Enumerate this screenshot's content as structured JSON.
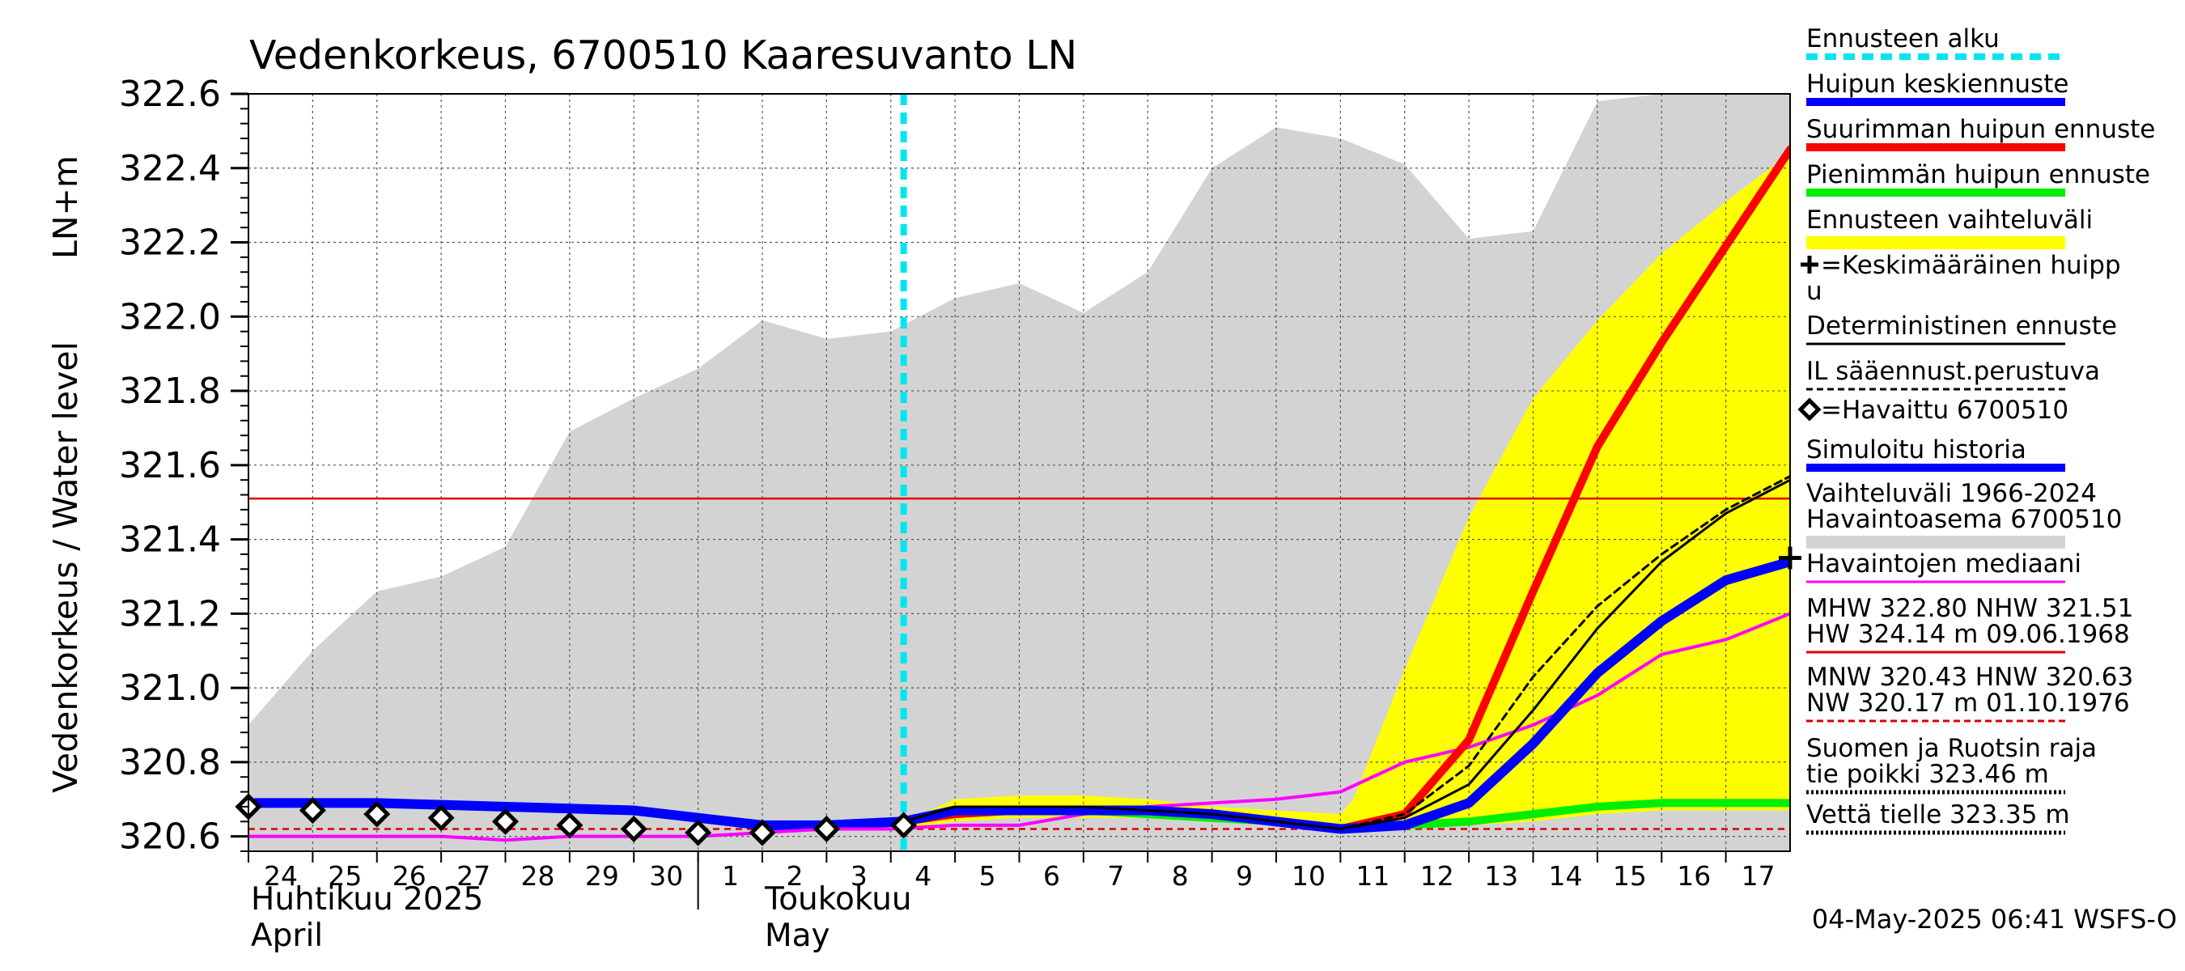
{
  "chart_data": {
    "type": "line",
    "title": "Vedenkorkeus, 6700510 Kaaresuvanto LN",
    "ylabel_left": "Vedenkorkeus / Water level",
    "ylabel_right": "LN+m",
    "ylim": [
      320.56,
      322.6
    ],
    "y_ticks": [
      "322.6",
      "322.4",
      "322.2",
      "322.0",
      "321.8",
      "321.6",
      "321.4",
      "321.2",
      "321.0",
      "320.8",
      "320.6"
    ],
    "y_tick_values": [
      322.6,
      322.4,
      322.2,
      322.0,
      321.8,
      321.6,
      321.4,
      321.2,
      321.0,
      320.8,
      320.6
    ],
    "x_ticks": [
      "24",
      "25",
      "26",
      "27",
      "28",
      "29",
      "30",
      "1",
      "2",
      "3",
      "4",
      "5",
      "6",
      "7",
      "8",
      "9",
      "10",
      "11",
      "12",
      "13",
      "14",
      "15",
      "16",
      "17"
    ],
    "x_tick_positions": [
      0,
      1,
      2,
      3,
      4,
      5,
      6,
      7,
      8,
      9,
      10,
      11,
      12,
      13,
      14,
      15,
      16,
      17,
      18,
      19,
      20,
      21,
      22,
      23
    ],
    "x_range": [
      0,
      24
    ],
    "grid": true,
    "month_labels": [
      {
        "line1": "Huhtikuu  2025",
        "line2": "April",
        "x": 0
      },
      {
        "line1": "Toukokuu",
        "line2": "May",
        "x": 8
      }
    ],
    "month_divider_x": 7,
    "forecast_start_x": 10.2,
    "reference_lines": {
      "nhw": 321.51,
      "nnw_dashed": 320.62
    },
    "history_band": {
      "x": [
        0,
        1,
        2,
        3,
        4,
        5,
        6,
        7,
        8,
        9,
        10,
        11,
        12,
        13,
        14,
        15,
        16,
        17,
        18,
        19,
        20,
        21,
        22,
        23,
        24
      ],
      "upper": [
        320.9,
        321.1,
        321.26,
        321.3,
        321.38,
        321.69,
        321.78,
        321.86,
        321.99,
        321.94,
        321.96,
        322.05,
        322.09,
        322.01,
        322.12,
        322.4,
        322.51,
        322.48,
        322.41,
        322.21,
        322.23,
        322.58,
        322.6,
        322.6,
        322.6
      ],
      "lower": [
        320.56,
        320.56,
        320.56,
        320.56,
        320.56,
        320.56,
        320.56,
        320.56,
        320.56,
        320.56,
        320.56,
        320.56,
        320.56,
        320.56,
        320.56,
        320.56,
        320.56,
        320.56,
        320.56,
        320.56,
        320.56,
        320.56,
        320.56,
        320.56,
        320.56
      ]
    },
    "forecast_band": {
      "x": [
        10.2,
        11,
        12,
        13,
        14,
        15,
        16,
        17,
        17.2,
        18,
        19,
        20,
        21,
        22,
        23,
        24
      ],
      "upper": [
        320.64,
        320.7,
        320.71,
        320.71,
        320.7,
        320.68,
        320.67,
        320.66,
        320.7,
        321.05,
        321.46,
        321.78,
        321.99,
        322.17,
        322.31,
        322.44
      ],
      "lower": [
        320.62,
        320.64,
        320.65,
        320.65,
        320.65,
        320.64,
        320.63,
        320.62,
        320.62,
        320.62,
        320.63,
        320.64,
        320.66,
        320.67,
        320.67,
        320.67
      ]
    },
    "series": [
      {
        "name": "Simuloitu historia",
        "color": "#0000ff",
        "x": [
          0,
          1,
          2,
          3,
          4,
          5,
          6,
          7,
          8,
          9,
          10.2
        ],
        "y": [
          320.69,
          320.69,
          320.69,
          320.685,
          320.68,
          320.675,
          320.67,
          320.65,
          320.63,
          320.63,
          320.64
        ]
      },
      {
        "name": "Havaintojen mediaani",
        "color": "#ff00ff",
        "x": [
          0,
          1,
          2,
          3,
          4,
          5,
          6,
          7,
          8,
          9,
          10,
          11,
          12,
          13,
          14,
          15,
          16,
          17,
          18,
          19,
          20,
          21,
          22,
          23,
          24
        ],
        "y": [
          320.6,
          320.6,
          320.6,
          320.6,
          320.59,
          320.6,
          320.6,
          320.6,
          320.61,
          320.62,
          320.62,
          320.63,
          320.63,
          320.66,
          320.68,
          320.69,
          320.7,
          320.72,
          320.8,
          320.84,
          320.9,
          320.98,
          321.09,
          321.13,
          321.2
        ]
      },
      {
        "name": "Suurimman huipun ennuste",
        "color": "#ff0000",
        "x": [
          10.2,
          11,
          12,
          13,
          14,
          15,
          16,
          17,
          18,
          19,
          20,
          21,
          22,
          23,
          24
        ],
        "y": [
          320.64,
          320.66,
          320.67,
          320.67,
          320.67,
          320.66,
          320.64,
          320.62,
          320.66,
          320.86,
          321.26,
          321.65,
          321.93,
          322.19,
          322.45
        ]
      },
      {
        "name": "Pienimmän huipun ennuste",
        "color": "#00ee00",
        "x": [
          10.2,
          11,
          12,
          13,
          14,
          15,
          16,
          17,
          18,
          19,
          20,
          21,
          22,
          23,
          24
        ],
        "y": [
          320.64,
          320.67,
          320.67,
          320.67,
          320.66,
          320.65,
          320.64,
          320.62,
          320.63,
          320.64,
          320.66,
          320.68,
          320.69,
          320.69,
          320.69
        ]
      },
      {
        "name": "Huipun keskiennuste",
        "color": "#0000ff",
        "x": [
          10.2,
          11,
          12,
          13,
          14,
          15,
          16,
          17,
          18,
          19,
          20,
          21,
          22,
          23,
          24
        ],
        "y": [
          320.64,
          320.67,
          320.67,
          320.67,
          320.67,
          320.66,
          320.64,
          320.62,
          320.63,
          320.69,
          320.85,
          321.04,
          321.18,
          321.29,
          321.34
        ]
      },
      {
        "name": "Deterministinen ennuste",
        "color": "#000000",
        "x": [
          10.2,
          11,
          12,
          13,
          14,
          15,
          16,
          17,
          18,
          19,
          20,
          21,
          22,
          23,
          24
        ],
        "y": [
          320.64,
          320.68,
          320.68,
          320.68,
          320.67,
          320.66,
          320.64,
          320.62,
          320.65,
          320.74,
          320.94,
          321.16,
          321.34,
          321.47,
          321.56
        ]
      },
      {
        "name": "IL sääennust.perustuva",
        "color": "#000000",
        "dashed": true,
        "x": [
          10.2,
          11,
          12,
          13,
          14,
          15,
          16,
          17,
          18,
          19,
          20,
          21,
          22,
          23,
          24
        ],
        "y": [
          320.64,
          320.68,
          320.68,
          320.68,
          320.67,
          320.66,
          320.64,
          320.62,
          320.66,
          320.79,
          321.03,
          321.22,
          321.36,
          321.48,
          321.57
        ]
      }
    ],
    "observed": {
      "name": "=Havaittu 6700510",
      "x": [
        0,
        1,
        2,
        3,
        4,
        5,
        6,
        7,
        8,
        9,
        10.2
      ],
      "y": [
        320.68,
        320.67,
        320.66,
        320.65,
        320.64,
        320.63,
        320.62,
        320.61,
        320.61,
        320.62,
        320.63
      ]
    },
    "mean_peak_marker": {
      "x": 24,
      "y": 321.35
    },
    "legend_position": "right",
    "legend": [
      {
        "label": "Ennusteen alku",
        "style": "cyan-dash",
        "color": "#00e5ee"
      },
      {
        "label": "Huipun keskiennuste",
        "style": "line-thick",
        "color": "#0000ff"
      },
      {
        "label": "Suurimman huipun ennuste",
        "style": "line-thick",
        "color": "#ff0000"
      },
      {
        "label": "Pienimmän huipun ennuste",
        "style": "line-thick",
        "color": "#00ee00"
      },
      {
        "label": "Ennusteen vaihteluväli",
        "style": "band",
        "color": "#ffff00"
      },
      {
        "label": "=Keskimääräinen huipp",
        "label2": "u",
        "style": "plus",
        "color": "#000000"
      },
      {
        "label": "Deterministinen ennuste",
        "style": "line-thin",
        "color": "#000000"
      },
      {
        "label": "IL sääennust.perustuva",
        "style": "line-dashed",
        "color": "#000000"
      },
      {
        "label": "=Havaittu 6700510",
        "style": "diamond",
        "color": "#000000"
      },
      {
        "label": "Simuloitu historia",
        "style": "line-thick",
        "color": "#0000ff"
      },
      {
        "label": "Vaihteluväli 1966-2024",
        "label2": " Havaintoasema 6700510",
        "style": "band",
        "color": "#d3d3d3"
      },
      {
        "label": "Havaintojen mediaani",
        "style": "line-thin",
        "color": "#ff00ff"
      },
      {
        "label": "MHW 322.80 NHW 321.51",
        "label2": "HW 324.14 m 09.06.1968",
        "style": "line-thin",
        "color": "#dd0000"
      },
      {
        "label": "MNW 320.43 HNW 320.63",
        "label2": "NW 320.17 m 01.10.1976",
        "style": "line-dashed",
        "color": "#dd0000"
      },
      {
        "label": "Suomen ja Ruotsin raja",
        "label2": "tie poikki 323.46 m",
        "style": "line-dotted",
        "color": "#000000"
      },
      {
        "label": "Vettä tielle 323.35 m",
        "style": "line-dotted",
        "color": "#000000"
      }
    ],
    "footer": "04-May-2025 06:41 WSFS-O"
  }
}
